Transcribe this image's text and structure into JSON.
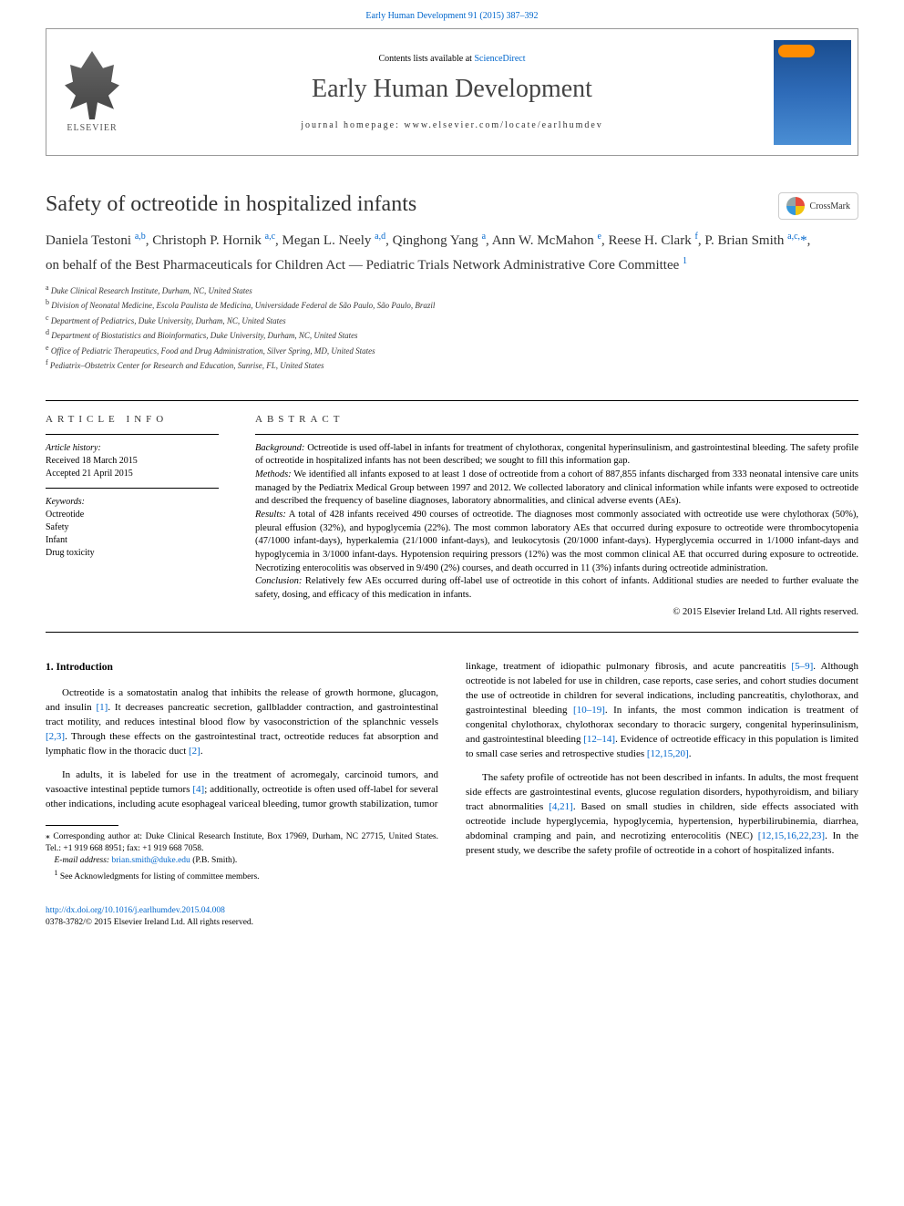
{
  "journal": {
    "ref_line": "Early Human Development 91 (2015) 387–392",
    "contents_prefix": "Contents lists available at ",
    "sciencedirect": "ScienceDirect",
    "name": "Early Human Development",
    "homepage_label": "journal homepage: ",
    "homepage_url": "www.elsevier.com/locate/earlhumdev",
    "publisher": "ELSEVIER"
  },
  "crossmark_label": "CrossMark",
  "article": {
    "title": "Safety of octreotide in hospitalized infants",
    "authors_html": "Daniela Testoni <sup>a,b</sup>, Christoph P. Hornik <sup>a,c</sup>, Megan L. Neely <sup>a,d</sup>, Qinghong Yang <sup>a</sup>, Ann W. McMahon <sup>e</sup>, Reese H. Clark <sup>f</sup>, P. Brian Smith <sup>a,c,</sup><span class=\"star\">*</span>,",
    "behalf": "on behalf of the Best Pharmaceuticals for Children Act — Pediatric Trials Network Administrative Core Committee ",
    "behalf_sup": "1",
    "affiliations": [
      {
        "sup": "a",
        "text": "Duke Clinical Research Institute, Durham, NC, United States"
      },
      {
        "sup": "b",
        "text": "Division of Neonatal Medicine, Escola Paulista de Medicina, Universidade Federal de São Paulo, São Paulo, Brazil"
      },
      {
        "sup": "c",
        "text": "Department of Pediatrics, Duke University, Durham, NC, United States"
      },
      {
        "sup": "d",
        "text": "Department of Biostatistics and Bioinformatics, Duke University, Durham, NC, United States"
      },
      {
        "sup": "e",
        "text": "Office of Pediatric Therapeutics, Food and Drug Administration, Silver Spring, MD, United States"
      },
      {
        "sup": "f",
        "text": "Pediatrix–Obstetrix Center for Research and Education, Sunrise, FL, United States"
      }
    ]
  },
  "article_info": {
    "header": "ARTICLE INFO",
    "history_label": "Article history:",
    "received": "Received 18 March 2015",
    "accepted": "Accepted 21 April 2015",
    "keywords_label": "Keywords:",
    "keywords": [
      "Octreotide",
      "Safety",
      "Infant",
      "Drug toxicity"
    ]
  },
  "abstract": {
    "header": "ABSTRACT",
    "background_label": "Background:",
    "background": " Octreotide is used off-label in infants for treatment of chylothorax, congenital hyperinsulinism, and gastrointestinal bleeding. The safety profile of octreotide in hospitalized infants has not been described; we sought to fill this information gap.",
    "methods_label": "Methods:",
    "methods": " We identified all infants exposed to at least 1 dose of octreotide from a cohort of 887,855 infants discharged from 333 neonatal intensive care units managed by the Pediatrix Medical Group between 1997 and 2012. We collected laboratory and clinical information while infants were exposed to octreotide and described the frequency of baseline diagnoses, laboratory abnormalities, and clinical adverse events (AEs).",
    "results_label": "Results:",
    "results": " A total of 428 infants received 490 courses of octreotide. The diagnoses most commonly associated with octreotide use were chylothorax (50%), pleural effusion (32%), and hypoglycemia (22%). The most common laboratory AEs that occurred during exposure to octreotide were thrombocytopenia (47/1000 infant-days), hyperkalemia (21/1000 infant-days), and leukocytosis (20/1000 infant-days). Hyperglycemia occurred in 1/1000 infant-days and hypoglycemia in 3/1000 infant-days. Hypotension requiring pressors (12%) was the most common clinical AE that occurred during exposure to octreotide. Necrotizing enterocolitis was observed in 9/490 (2%) courses, and death occurred in 11 (3%) infants during octreotide administration.",
    "conclusion_label": "Conclusion:",
    "conclusion": " Relatively few AEs occurred during off-label use of octreotide in this cohort of infants. Additional studies are needed to further evaluate the safety, dosing, and efficacy of this medication in infants.",
    "copyright": "© 2015 Elsevier Ireland Ltd. All rights reserved."
  },
  "body": {
    "intro_heading": "1. Introduction",
    "p1_a": "Octreotide is a somatostatin analog that inhibits the release of growth hormone, glucagon, and insulin ",
    "ref1": "[1]",
    "p1_b": ". It decreases pancreatic secretion, gallbladder contraction, and gastrointestinal tract motility, and reduces intestinal blood flow by vasoconstriction of the splanchnic vessels ",
    "ref23": "[2,3]",
    "p1_c": ". Through these effects on the gastrointestinal tract, octreotide reduces fat absorption and lymphatic flow in the thoracic duct ",
    "ref2": "[2]",
    "p1_d": ".",
    "p2_a": "In adults, it is labeled for use in the treatment of acromegaly, carcinoid tumors, and vasoactive intestinal peptide tumors ",
    "ref4": "[4]",
    "p2_b": "; additionally, octreotide is often used off-label for several other indications, including acute esophageal variceal bleeding, tumor growth stabilization, tumor",
    "p3_a": "linkage, treatment of idiopathic pulmonary fibrosis, and acute pancreatitis ",
    "ref59": "[5–9]",
    "p3_b": ". Although octreotide is not labeled for use in children, case reports, case series, and cohort studies document the use of octreotide in children for several indications, including pancreatitis, chylothorax, and gastrointestinal bleeding ",
    "ref1019": "[10–19]",
    "p3_c": ". In infants, the most common indication is treatment of congenital chylothorax, chylothorax secondary to thoracic surgery, congenital hyperinsulinism, and gastrointestinal bleeding ",
    "ref1214": "[12–14]",
    "p3_d": ". Evidence of octreotide efficacy in this population is limited to small case series and retrospective studies ",
    "ref121520": "[12,15,20]",
    "p3_e": ".",
    "p4_a": "The safety profile of octreotide has not been described in infants. In adults, the most frequent side effects are gastrointestinal events, glucose regulation disorders, hypothyroidism, and biliary tract abnormalities ",
    "ref421": "[4,21]",
    "p4_b": ". Based on small studies in children, side effects associated with octreotide include hyperglycemia, hypoglycemia, hypertension, hyperbilirubinemia, diarrhea, abdominal cramping and pain, and necrotizing enterocolitis (NEC) ",
    "ref_nec": "[12,15,16,22,23]",
    "p4_c": ". In the present study, we describe the safety profile of octreotide in a cohort of hospitalized infants."
  },
  "footnotes": {
    "corr_star": "⁎",
    "corr": " Corresponding author at: Duke Clinical Research Institute, Box 17969, Durham, NC 27715, United States. Tel.: +1 919 668 8951; fax: +1 919 668 7058.",
    "email_label": "E-mail address: ",
    "email": "brian.smith@duke.edu",
    "email_suffix": " (P.B. Smith).",
    "note1_sup": "1",
    "note1": " See Acknowledgments for listing of committee members."
  },
  "doi": {
    "url": "http://dx.doi.org/10.1016/j.earlhumdev.2015.04.008",
    "issn_line": "0378-3782/© 2015 Elsevier Ireland Ltd. All rights reserved."
  },
  "colors": {
    "link": "#0066cc",
    "text": "#000000",
    "header_gray": "#444444",
    "cover_gradient_top": "#1a4d8f",
    "cover_gradient_bottom": "#4a8ed4"
  }
}
